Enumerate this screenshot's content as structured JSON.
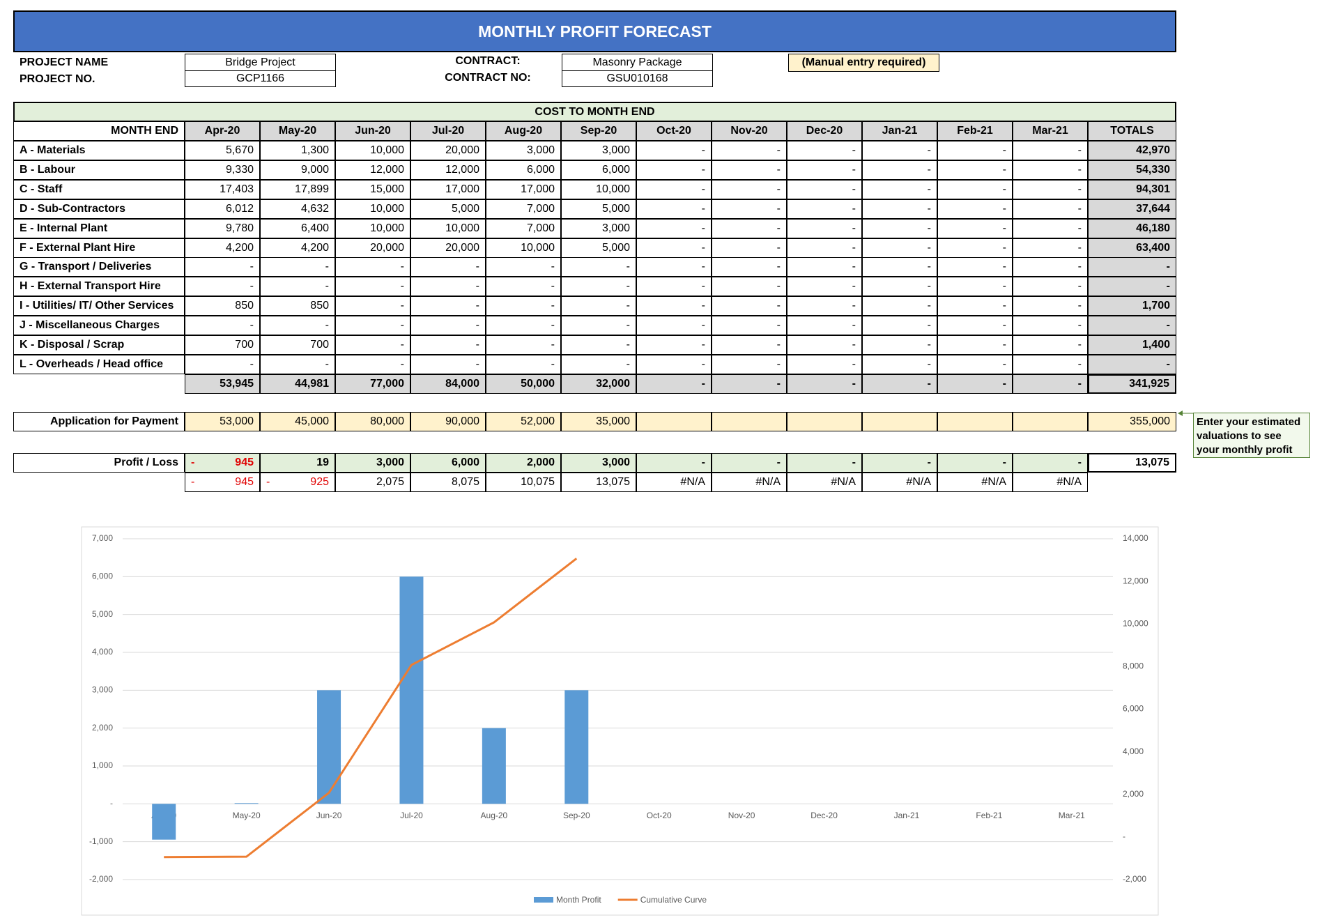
{
  "header": {
    "title": "MONTHLY PROFIT FORECAST"
  },
  "info": {
    "project_name_label": "PROJECT NAME",
    "project_name": "Bridge Project",
    "project_no_label": "PROJECT NO.",
    "project_no": "GCP1166",
    "contract_label": "CONTRACT:",
    "contract": "Masonry Package",
    "contract_no_label": "CONTRACT NO:",
    "contract_no": "GSU010168",
    "manual_note": "(Manual entry required)"
  },
  "table": {
    "section_title": "COST TO MONTH END",
    "month_header": "MONTH END",
    "months": [
      "Apr-20",
      "May-20",
      "Jun-20",
      "Jul-20",
      "Aug-20",
      "Sep-20",
      "Oct-20",
      "Nov-20",
      "Dec-20",
      "Jan-21",
      "Feb-21",
      "Mar-21"
    ],
    "totals_header": "TOTALS",
    "rows": [
      {
        "label": "A - Materials",
        "cells": [
          "5,670",
          "1,300",
          "10,000",
          "20,000",
          "3,000",
          "3,000",
          "-",
          "-",
          "-",
          "-",
          "-",
          "-"
        ],
        "total": "42,970"
      },
      {
        "label": "B - Labour",
        "cells": [
          "9,330",
          "9,000",
          "12,000",
          "12,000",
          "6,000",
          "6,000",
          "-",
          "-",
          "-",
          "-",
          "-",
          "-"
        ],
        "total": "54,330"
      },
      {
        "label": "C - Staff",
        "cells": [
          "17,403",
          "17,899",
          "15,000",
          "17,000",
          "17,000",
          "10,000",
          "-",
          "-",
          "-",
          "-",
          "-",
          "-"
        ],
        "total": "94,301"
      },
      {
        "label": "D - Sub-Contractors",
        "cells": [
          "6,012",
          "4,632",
          "10,000",
          "5,000",
          "7,000",
          "5,000",
          "-",
          "-",
          "-",
          "-",
          "-",
          "-"
        ],
        "total": "37,644"
      },
      {
        "label": "E - Internal Plant",
        "cells": [
          "9,780",
          "6,400",
          "10,000",
          "10,000",
          "7,000",
          "3,000",
          "-",
          "-",
          "-",
          "-",
          "-",
          "-"
        ],
        "total": "46,180"
      },
      {
        "label": "F - External Plant Hire",
        "cells": [
          "4,200",
          "4,200",
          "20,000",
          "20,000",
          "10,000",
          "5,000",
          "-",
          "-",
          "-",
          "-",
          "-",
          "-"
        ],
        "total": "63,400"
      },
      {
        "label": "G - Transport / Deliveries",
        "cells": [
          "-",
          "-",
          "-",
          "-",
          "-",
          "-",
          "-",
          "-",
          "-",
          "-",
          "-",
          "-"
        ],
        "total": "-"
      },
      {
        "label": "H - External Transport Hire",
        "cells": [
          "-",
          "-",
          "-",
          "-",
          "-",
          "-",
          "-",
          "-",
          "-",
          "-",
          "-",
          "-"
        ],
        "total": "-"
      },
      {
        "label": "I - Utilities/ IT/ Other Services",
        "cells": [
          "850",
          "850",
          "-",
          "-",
          "-",
          "-",
          "-",
          "-",
          "-",
          "-",
          "-",
          "-"
        ],
        "total": "1,700"
      },
      {
        "label": "J - Miscellaneous Charges",
        "cells": [
          "-",
          "-",
          "-",
          "-",
          "-",
          "-",
          "-",
          "-",
          "-",
          "-",
          "-",
          "-"
        ],
        "total": "-"
      },
      {
        "label": "K - Disposal / Scrap",
        "cells": [
          "700",
          "700",
          "-",
          "-",
          "-",
          "-",
          "-",
          "-",
          "-",
          "-",
          "-",
          "-"
        ],
        "total": "1,400"
      },
      {
        "label": "L - Overheads / Head office",
        "cells": [
          "-",
          "-",
          "-",
          "-",
          "-",
          "-",
          "-",
          "-",
          "-",
          "-",
          "-",
          "-"
        ],
        "total": "-"
      }
    ],
    "subtotals": {
      "cells": [
        "53,945",
        "44,981",
        "77,000",
        "84,000",
        "50,000",
        "32,000",
        "-",
        "-",
        "-",
        "-",
        "-",
        "-"
      ],
      "total": "341,925"
    }
  },
  "application": {
    "label": "Application for Payment",
    "cells": [
      "53,000",
      "45,000",
      "80,000",
      "90,000",
      "52,000",
      "35,000"
    ],
    "total": "355,000"
  },
  "profit": {
    "label": "Profit / Loss",
    "cells": [
      {
        "sign": "-",
        "amount": "945"
      },
      "19",
      "3,000",
      "6,000",
      "2,000",
      "3,000",
      "-",
      "-",
      "-",
      "-",
      "-",
      "-"
    ],
    "total": "13,075"
  },
  "cumulative": {
    "cells": [
      {
        "sign": "-",
        "amount": "945"
      },
      {
        "sign": "-",
        "amount": "925"
      },
      "2,075",
      "8,075",
      "10,075",
      "13,075",
      "#N/A",
      "#N/A",
      "#N/A",
      "#N/A",
      "#N/A",
      "#N/A"
    ]
  },
  "note": {
    "lines": [
      "Enter your estimated",
      "valuations to see",
      "your monthly profit"
    ]
  },
  "chart_data": {
    "type": "bar-line",
    "categories": [
      "Apr-20",
      "May-20",
      "Jun-20",
      "Jul-20",
      "Aug-20",
      "Sep-20",
      "Oct-20",
      "Nov-20",
      "Dec-20",
      "Jan-21",
      "Feb-21",
      "Mar-21"
    ],
    "series": [
      {
        "name": "Month Profit",
        "type": "bar",
        "color": "#5b9bd5",
        "values": [
          -945,
          19,
          3000,
          6000,
          2000,
          3000,
          0,
          0,
          0,
          0,
          0,
          0
        ]
      },
      {
        "name": "Cumulative Curve",
        "type": "line",
        "axis": "y2",
        "color": "#ed7d31",
        "values": [
          -945,
          -925,
          2075,
          8075,
          10075,
          13075,
          null,
          null,
          null,
          null,
          null,
          null
        ]
      }
    ],
    "ylim": [
      -2000,
      7000
    ],
    "yticks": [
      {
        "value": -2000,
        "label": "-2,000"
      },
      {
        "value": -1000,
        "label": "-1,000"
      },
      {
        "value": 0,
        "label": "-"
      },
      {
        "value": 1000,
        "label": "1,000"
      },
      {
        "value": 2000,
        "label": "2,000"
      },
      {
        "value": 3000,
        "label": "3,000"
      },
      {
        "value": 4000,
        "label": "4,000"
      },
      {
        "value": 5000,
        "label": "5,000"
      },
      {
        "value": 6000,
        "label": "6,000"
      },
      {
        "value": 7000,
        "label": "7,000"
      }
    ],
    "y2lim": [
      -2000,
      14000
    ],
    "y2ticks": [
      {
        "value": -2000,
        "label": "-2,000"
      },
      {
        "value": 0,
        "label": "-"
      },
      {
        "value": 2000,
        "label": "2,000"
      },
      {
        "value": 4000,
        "label": "4,000"
      },
      {
        "value": 6000,
        "label": "6,000"
      },
      {
        "value": 8000,
        "label": "8,000"
      },
      {
        "value": 10000,
        "label": "10,000"
      },
      {
        "value": 12000,
        "label": "12,000"
      },
      {
        "value": 14000,
        "label": "14,000"
      }
    ],
    "grid": true,
    "legend": "bottom"
  }
}
